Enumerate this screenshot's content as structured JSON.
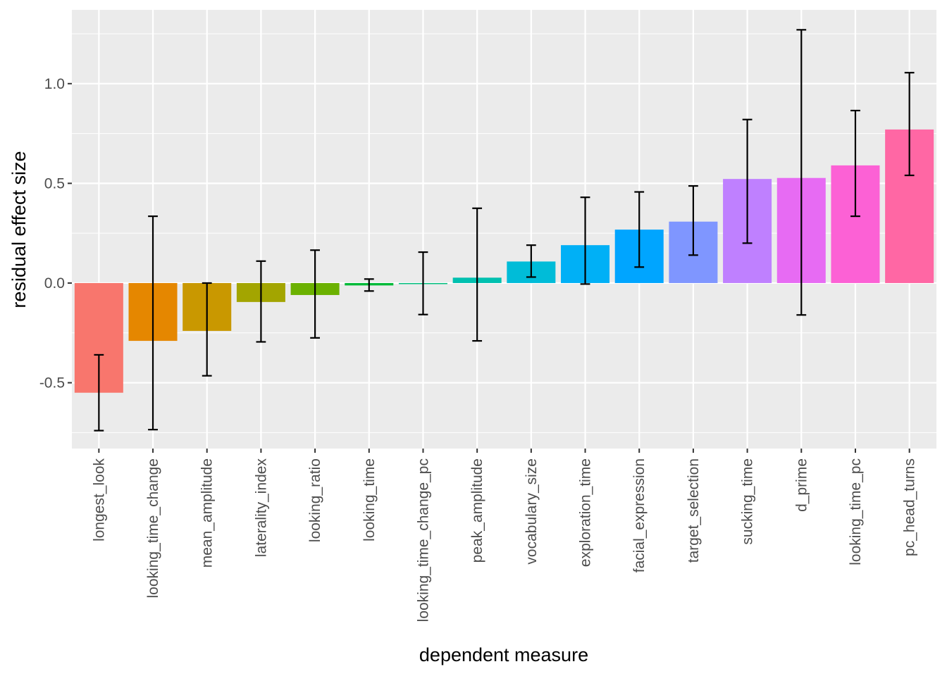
{
  "chart_data": {
    "type": "bar",
    "title": "",
    "xlabel": "dependent measure",
    "ylabel": "residual effect size",
    "ylim": [
      -0.83,
      1.37
    ],
    "yticks": [
      -0.5,
      0.0,
      0.5,
      1.0
    ],
    "ytick_labels": [
      "-0.5",
      "0.0",
      "0.5",
      "1.0"
    ],
    "grid": true,
    "legend": "none",
    "categories": [
      "longest_look",
      "looking_time_change",
      "mean_amplitude",
      "laterality_index",
      "looking_ratio",
      "looking_time",
      "looking_time_change_pc",
      "peak_amplitude",
      "vocabulary_size",
      "exploration_time",
      "facial_expression",
      "target_selection",
      "sucking_time",
      "d_prime",
      "looking_time_pc",
      "pc_head_turns"
    ],
    "values": [
      -0.55,
      -0.29,
      -0.24,
      -0.095,
      -0.06,
      -0.012,
      -0.003,
      0.027,
      0.108,
      0.19,
      0.268,
      0.308,
      0.522,
      0.527,
      0.59,
      0.77
    ],
    "error_low": [
      -0.74,
      -0.735,
      -0.465,
      -0.295,
      -0.275,
      -0.04,
      -0.158,
      -0.29,
      0.03,
      -0.005,
      0.08,
      0.14,
      0.2,
      -0.16,
      0.335,
      0.54
    ],
    "error_high": [
      -0.36,
      0.335,
      0.0,
      0.11,
      0.165,
      0.02,
      0.155,
      0.375,
      0.19,
      0.43,
      0.457,
      0.487,
      0.82,
      1.27,
      0.865,
      1.055
    ],
    "colors": [
      "#F8766D",
      "#E58700",
      "#C99800",
      "#A3A500",
      "#6BB100",
      "#00BA38",
      "#00BF7D",
      "#00C0AF",
      "#00BCD8",
      "#00B0F6",
      "#00A5FF",
      "#7F96FF",
      "#BF80FF",
      "#E76BF3",
      "#FC61D5",
      "#FF67A4"
    ]
  }
}
